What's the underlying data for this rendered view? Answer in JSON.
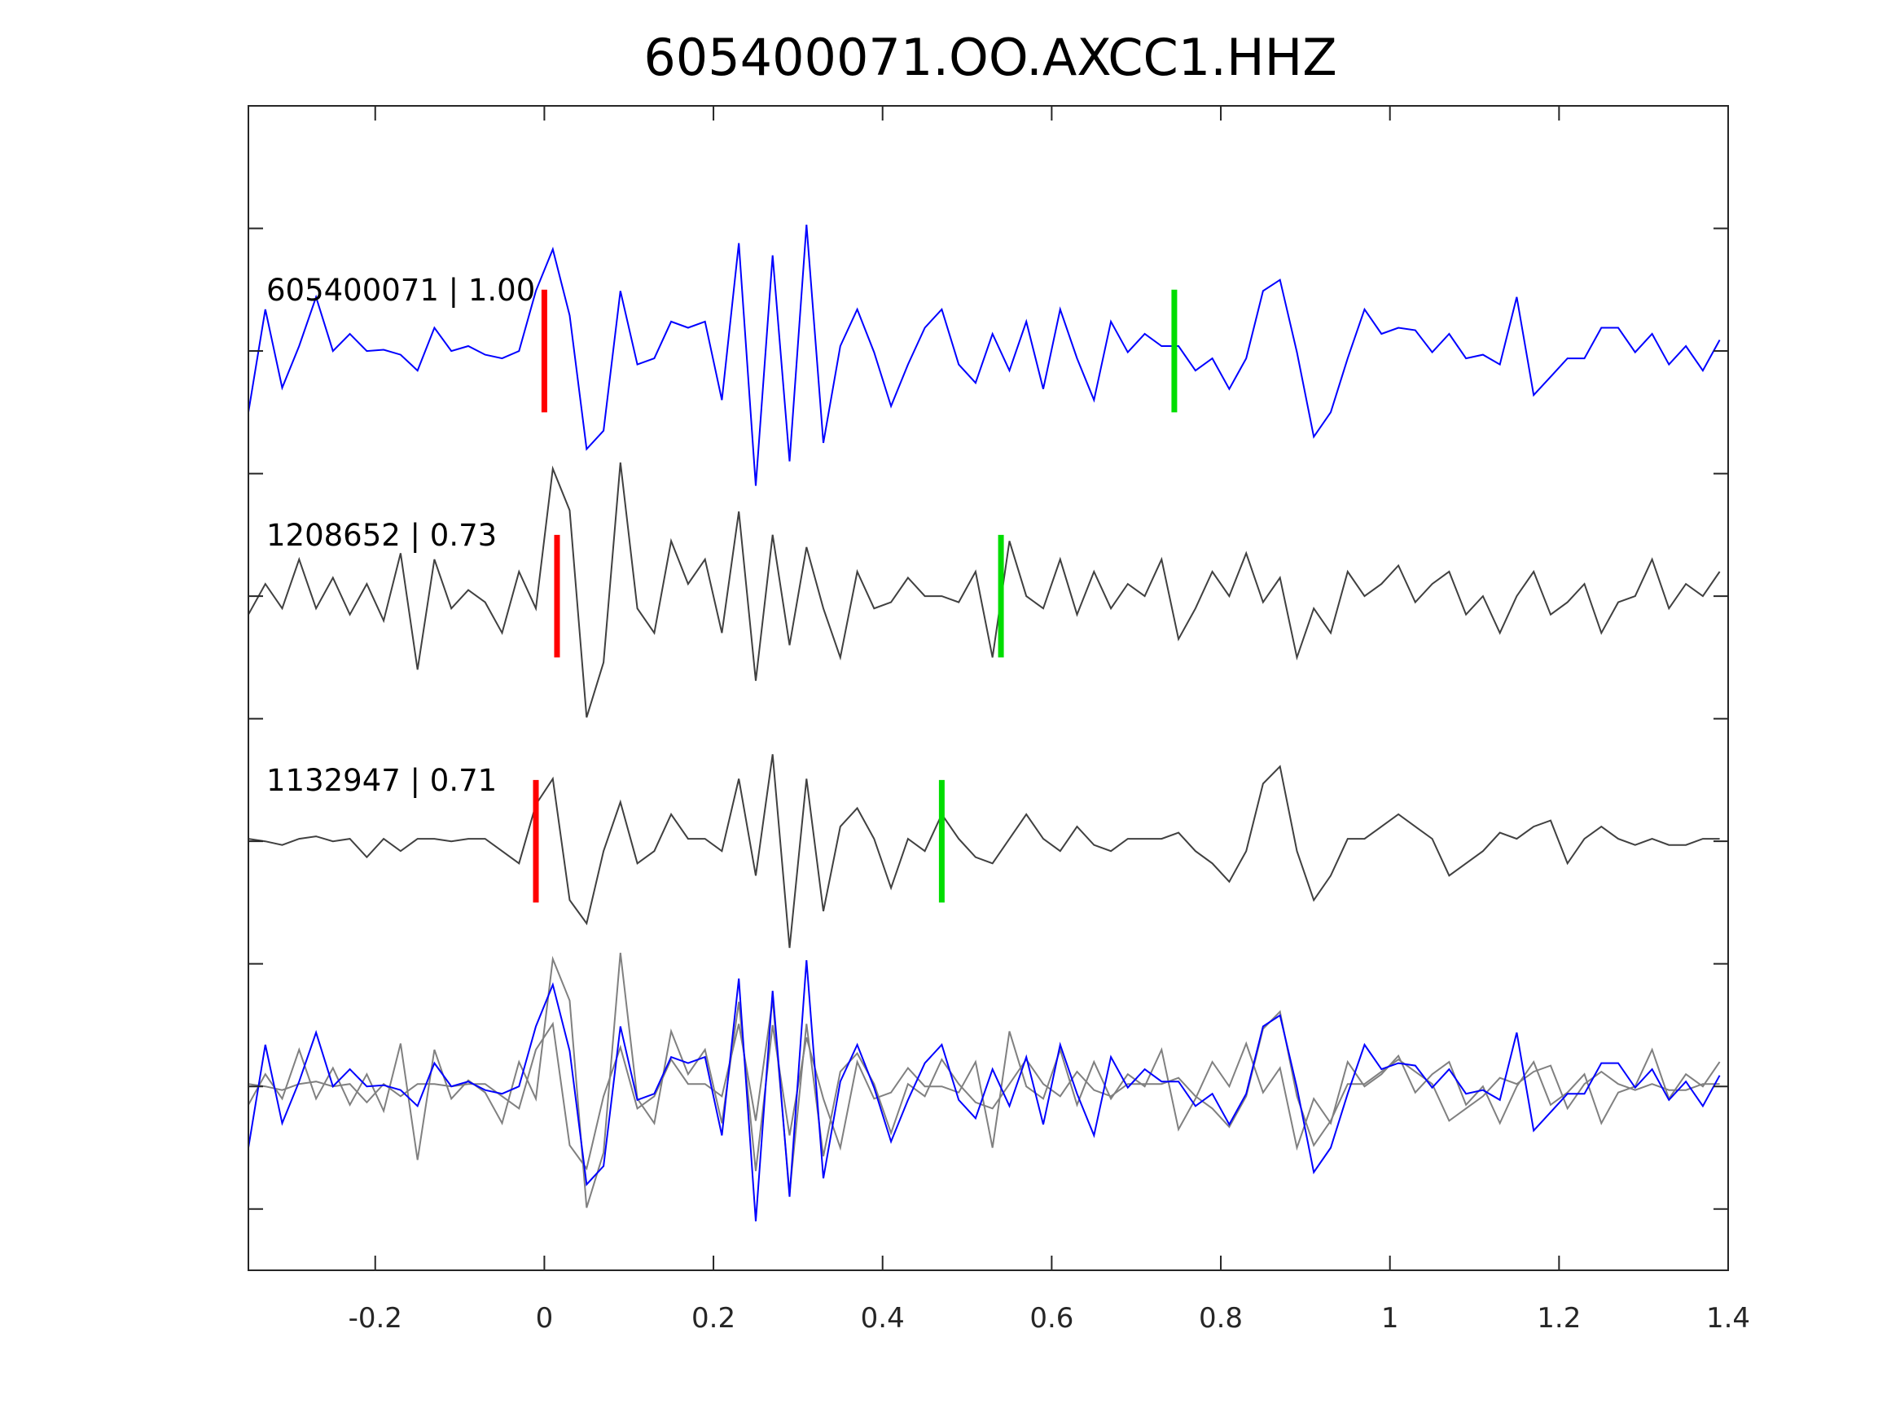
{
  "chart_data": {
    "type": "line",
    "title": "605400071.OO.AXCC1.HHZ",
    "xlabel": "",
    "ylabel": "",
    "xlim": [
      -0.35,
      1.4
    ],
    "ylim": [
      -7.5,
      2
    ],
    "xticks": [
      -0.2,
      0,
      0.2,
      0.4,
      0.6,
      0.8,
      1,
      1.2,
      1.4
    ],
    "xtick_labels": [
      "-0.2",
      "0",
      "0.2",
      "0.4",
      "0.6",
      "0.8",
      "1",
      "1.2",
      "1.4"
    ],
    "yticks": [
      -7,
      -6,
      -5,
      -4,
      -3,
      -2,
      -1,
      0,
      1
    ],
    "grid": false,
    "t_start": -0.35,
    "dt": 0.02,
    "colors": {
      "reference": "#0000ff",
      "other": "#404040",
      "stack_other": "#808080",
      "p_pick": "#ff0000",
      "s_pick": "#00dd00"
    },
    "stack_offset": -6,
    "series": [
      {
        "name": "605400071",
        "label": "605400071 | 1.00",
        "cc": 1.0,
        "offset": 0,
        "color": "#0000ff",
        "p_pick": 0.0,
        "s_pick": 0.745,
        "values": [
          -0.5,
          0.34,
          -0.3,
          0.04,
          0.44,
          0,
          0.14,
          0,
          0.01,
          -0.03,
          -0.16,
          0.19,
          0,
          0.04,
          -0.03,
          -0.06,
          0,
          0.49,
          0.83,
          0.29,
          -0.8,
          -0.65,
          0.49,
          -0.11,
          -0.06,
          0.24,
          0.19,
          0.24,
          -0.4,
          0.88,
          -1.1,
          0.78,
          -0.9,
          1.03,
          -0.75,
          0.04,
          0.34,
          -0.01,
          -0.45,
          -0.11,
          0.19,
          0.34,
          -0.11,
          -0.26,
          0.14,
          -0.16,
          0.24,
          -0.31,
          0.34,
          -0.06,
          -0.4,
          0.24,
          -0.01,
          0.14,
          0.04,
          0.04,
          -0.16,
          -0.06,
          -0.31,
          -0.06,
          0.49,
          0.58,
          -0.01,
          -0.7,
          -0.5,
          -0.06,
          0.34,
          0.14,
          0.19,
          0.17,
          -0.01,
          0.14,
          -0.06,
          -0.03,
          -0.11,
          0.44,
          -0.36,
          -0.21,
          -0.06,
          -0.06,
          0.19,
          0.19,
          -0.01,
          0.14,
          -0.11,
          0.04,
          -0.16,
          0.09,
          -0.21
        ]
      },
      {
        "name": "1208652",
        "label": "1208652 | 0.73",
        "cc": 0.73,
        "offset": -2,
        "color": "#404040",
        "p_pick": 0.015,
        "s_pick": 0.54,
        "values": [
          -0.15,
          0.1,
          -0.1,
          0.3,
          -0.1,
          0.15,
          -0.15,
          0.1,
          -0.2,
          0.35,
          -0.6,
          0.3,
          -0.1,
          0.05,
          -0.05,
          -0.3,
          0.2,
          -0.1,
          1.04,
          0.7,
          -0.99,
          -0.54,
          1.09,
          -0.1,
          -0.3,
          0.45,
          0.1,
          0.3,
          -0.3,
          0.69,
          -0.69,
          0.5,
          -0.4,
          0.4,
          -0.1,
          -0.5,
          0.2,
          -0.1,
          -0.05,
          0.15,
          0,
          0,
          -0.05,
          0.2,
          -0.5,
          0.45,
          0,
          -0.1,
          0.3,
          -0.15,
          0.2,
          -0.1,
          0.1,
          0,
          0.3,
          -0.35,
          -0.1,
          0.2,
          0,
          0.35,
          -0.05,
          0.15,
          -0.5,
          -0.1,
          -0.3,
          0.2,
          0,
          0.1,
          0.25,
          -0.05,
          0.1,
          0.2,
          -0.15,
          0,
          -0.3,
          0,
          0.2,
          -0.15,
          -0.05,
          0.1,
          -0.3,
          -0.05,
          0,
          0.3,
          -0.1,
          0.1,
          0,
          0.2,
          -0.55
        ]
      },
      {
        "name": "1132947",
        "label": "1132947 | 0.71",
        "cc": 0.71,
        "offset": -4,
        "color": "#404040",
        "p_pick": -0.01,
        "s_pick": 0.47,
        "values": [
          0.02,
          0,
          -0.03,
          0.02,
          0.04,
          0,
          0.02,
          -0.13,
          0.02,
          -0.08,
          0.02,
          0.02,
          0,
          0.02,
          0.02,
          -0.08,
          -0.18,
          0.3,
          0.51,
          -0.48,
          -0.67,
          -0.08,
          0.32,
          -0.18,
          -0.08,
          0.22,
          0.02,
          0.02,
          -0.08,
          0.51,
          -0.28,
          0.71,
          -0.87,
          0.51,
          -0.57,
          0.12,
          0.27,
          0.02,
          -0.38,
          0.02,
          -0.08,
          0.22,
          0.02,
          -0.13,
          -0.18,
          0.02,
          0.22,
          0.02,
          -0.08,
          0.12,
          -0.03,
          -0.08,
          0.02,
          0.02,
          0.02,
          0.07,
          -0.08,
          -0.18,
          -0.33,
          -0.08,
          0.47,
          0.61,
          -0.08,
          -0.48,
          -0.28,
          0.02,
          0.02,
          0.12,
          0.22,
          0.12,
          0.02,
          -0.28,
          -0.18,
          -0.08,
          0.07,
          0.02,
          0.12,
          0.17,
          -0.18,
          0.02,
          0.12,
          0.02,
          -0.03,
          0.02,
          -0.03,
          -0.03,
          0.02,
          0.02,
          -0.13
        ]
      }
    ]
  }
}
